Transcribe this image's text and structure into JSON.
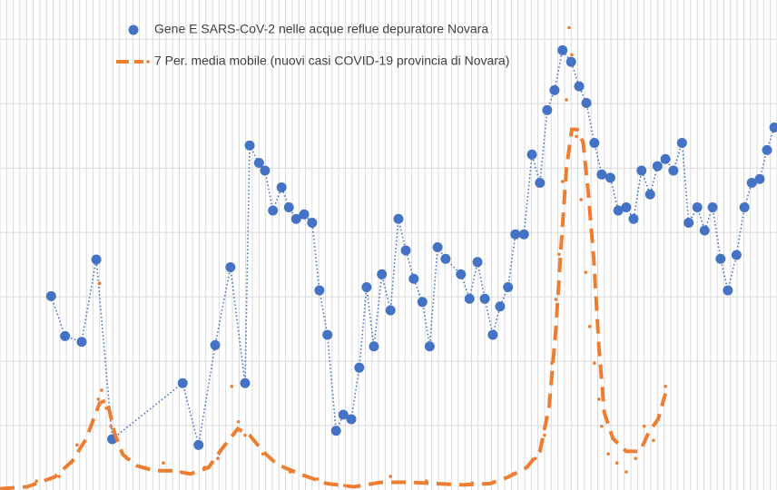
{
  "chart_data": {
    "type": "line",
    "xlim": [
      0,
      117
    ],
    "ylim": [
      0,
      7.61
    ],
    "xticks": [
      0,
      1,
      2,
      3,
      4,
      5,
      6,
      7,
      8,
      9,
      10,
      11,
      12,
      13,
      14,
      15,
      16,
      17,
      18,
      19,
      20,
      21,
      22,
      23,
      24,
      25,
      26,
      27,
      28,
      29,
      30,
      31,
      32,
      33,
      34,
      35,
      36,
      37,
      38,
      39,
      40,
      41,
      42,
      43,
      44,
      45,
      46,
      47,
      48,
      49,
      50,
      51,
      52,
      53,
      54,
      55,
      56,
      57,
      58,
      59,
      60,
      61,
      62,
      63,
      64,
      65,
      66,
      67,
      68,
      69,
      70,
      71,
      72,
      73,
      74,
      75,
      76,
      77,
      78,
      79,
      80,
      81,
      82,
      83,
      84,
      85,
      86,
      87,
      88,
      89,
      90,
      91,
      92,
      93,
      94,
      95,
      96,
      97,
      98,
      99,
      100,
      101,
      102,
      103,
      104,
      105,
      106,
      107,
      108,
      109,
      110,
      111,
      112,
      113,
      114,
      115,
      116,
      117
    ],
    "yticks": [
      1,
      2,
      3,
      4,
      5,
      6,
      7
    ],
    "grid": true,
    "legend": "top",
    "series": [
      {
        "name": "Gene E SARS-CoV-2 nelle acque reflue depuratore Novara",
        "color": "#4472c4",
        "line_style": "dotted",
        "marker": "circle",
        "x": [
          7.7,
          9.8,
          12.3,
          14.5,
          16.9,
          27.5,
          29.9,
          32.4,
          34.7,
          36.9,
          37.6,
          39.0,
          39.9,
          41.1,
          42.4,
          43.5,
          44.6,
          45.8,
          47.0,
          48.1,
          49.3,
          50.6,
          51.7,
          52.9,
          54.1,
          55.2,
          56.3,
          57.5,
          58.8,
          60.0,
          61.1,
          62.3,
          63.6,
          64.7,
          65.9,
          67.1,
          69.4,
          70.7,
          71.9,
          73.0,
          74.2,
          75.3,
          76.5,
          77.6,
          78.9,
          80.1,
          81.3,
          82.4,
          83.5,
          84.7,
          86.0,
          87.2,
          88.3,
          89.5,
          90.6,
          91.9,
          93.1,
          94.3,
          95.4,
          96.6,
          97.9,
          99.0,
          100.2,
          101.4,
          102.7,
          103.7,
          105.0,
          106.1,
          107.3,
          108.5,
          109.6,
          110.9,
          112.1,
          113.2,
          114.4,
          115.5,
          116.6
        ],
        "values": [
          3.01,
          2.39,
          2.3,
          3.58,
          0.79,
          1.66,
          0.7,
          2.25,
          3.46,
          1.66,
          5.35,
          5.08,
          4.96,
          4.34,
          4.7,
          4.39,
          4.21,
          4.28,
          4.15,
          3.1,
          2.41,
          0.92,
          1.17,
          1.1,
          1.9,
          3.15,
          2.23,
          3.35,
          2.79,
          4.21,
          3.72,
          3.28,
          2.92,
          2.23,
          3.77,
          3.59,
          3.35,
          2.97,
          3.54,
          2.97,
          2.41,
          2.85,
          3.15,
          3.97,
          3.97,
          5.21,
          4.77,
          5.9,
          6.21,
          6.83,
          6.65,
          6.27,
          6.01,
          5.39,
          4.9,
          4.85,
          4.34,
          4.39,
          4.21,
          4.96,
          4.59,
          5.03,
          5.14,
          4.96,
          5.39,
          4.15,
          4.39,
          4.03,
          4.39,
          3.59,
          3.1,
          3.65,
          4.39,
          4.77,
          4.83,
          5.28,
          5.63
        ]
      },
      {
        "name": "7 Per. media mobile (nuovi casi COVID-19 provincia di Novara)",
        "color": "#ed7d31",
        "line_style": "dashed",
        "marker": "none",
        "x": [
          0,
          4.1,
          8.2,
          10.9,
          13.0,
          15.0,
          16.1,
          17.2,
          18.5,
          20.5,
          23.2,
          26.0,
          28.7,
          31.4,
          33.5,
          35.8,
          37.6,
          39.6,
          41.7,
          45.1,
          49.2,
          53.3,
          57.4,
          61.5,
          65.6,
          69.7,
          73.8,
          76.5,
          79.3,
          81.3,
          82.7,
          83.7,
          84.5,
          85.3,
          86.1,
          86.9,
          87.8,
          88.6,
          89.4,
          90.2,
          91.0,
          92.3,
          94.3,
          96.4,
          97.7,
          99.1,
          100.2
        ],
        "values": [
          0.02,
          0.05,
          0.2,
          0.45,
          0.8,
          1.35,
          1.4,
          0.9,
          0.55,
          0.38,
          0.3,
          0.3,
          0.25,
          0.35,
          0.65,
          0.95,
          0.85,
          0.6,
          0.4,
          0.25,
          0.1,
          0.05,
          0.12,
          0.12,
          0.1,
          0.08,
          0.1,
          0.2,
          0.35,
          0.6,
          1.3,
          2.5,
          3.8,
          5.0,
          5.6,
          5.6,
          5.4,
          4.6,
          3.6,
          2.2,
          1.2,
          0.8,
          0.6,
          0.6,
          0.9,
          1.1,
          1.5
        ]
      },
      {
        "color": "#ed7d31",
        "line_style": "none",
        "marker": "dot",
        "x": [
          1.4,
          5.5,
          8.9,
          10.7,
          11.6,
          13.7,
          14.8,
          15.0,
          15.3,
          16.0,
          16.7,
          19.1,
          21.9,
          24.6,
          27.3,
          30.8,
          32.8,
          34.9,
          35.9,
          36.9,
          39.6,
          43.7,
          47.8,
          51.9,
          58.8,
          64.2,
          71.1,
          77.2,
          80.6,
          82.0,
          82.7,
          83.1,
          83.7,
          84.2,
          84.7,
          85.3,
          85.7,
          86.1,
          86.8,
          87.5,
          88.2,
          88.8,
          89.5,
          90.2,
          90.6,
          91.6,
          92.9,
          94.3,
          95.7,
          97.0,
          98.4,
          100.2
        ],
        "values": [
          0.03,
          0.14,
          0.21,
          0.42,
          0.7,
          0.99,
          1.41,
          3.21,
          1.55,
          1.27,
          0.99,
          0.49,
          0.35,
          0.42,
          0.28,
          0.35,
          0.49,
          1.61,
          1.06,
          0.85,
          0.56,
          0.28,
          0.17,
          0.07,
          0.21,
          0.14,
          0.11,
          0.25,
          0.49,
          0.85,
          1.41,
          1.97,
          2.96,
          3.66,
          4.79,
          6.06,
          7.18,
          6.76,
          5.49,
          4.51,
          3.38,
          2.54,
          1.97,
          1.41,
          0.99,
          0.56,
          0.42,
          0.28,
          0.49,
          0.99,
          0.77,
          1.61
        ]
      }
    ]
  }
}
